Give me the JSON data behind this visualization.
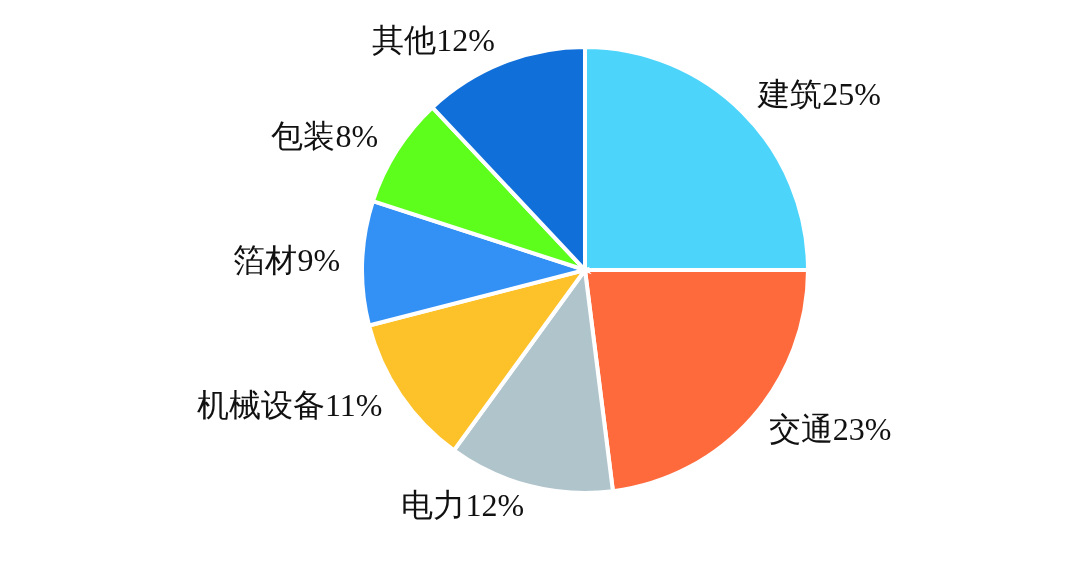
{
  "chart_data": {
    "type": "pie",
    "categories": [
      "建筑",
      "交通",
      "电力",
      "机械设备",
      "箔材",
      "包装",
      "其他"
    ],
    "values": [
      25,
      23,
      12,
      11,
      9,
      8,
      12
    ],
    "value_labels": [
      "25%",
      "23%",
      "12%",
      "11%",
      "9%",
      "8%",
      "12%"
    ],
    "colors": [
      "#4dd4fb",
      "#ff6a3d",
      "#b0c4cc",
      "#fdc12a",
      "#3390f5",
      "#5dfd1c",
      "#106fd9"
    ],
    "legend": false
  }
}
